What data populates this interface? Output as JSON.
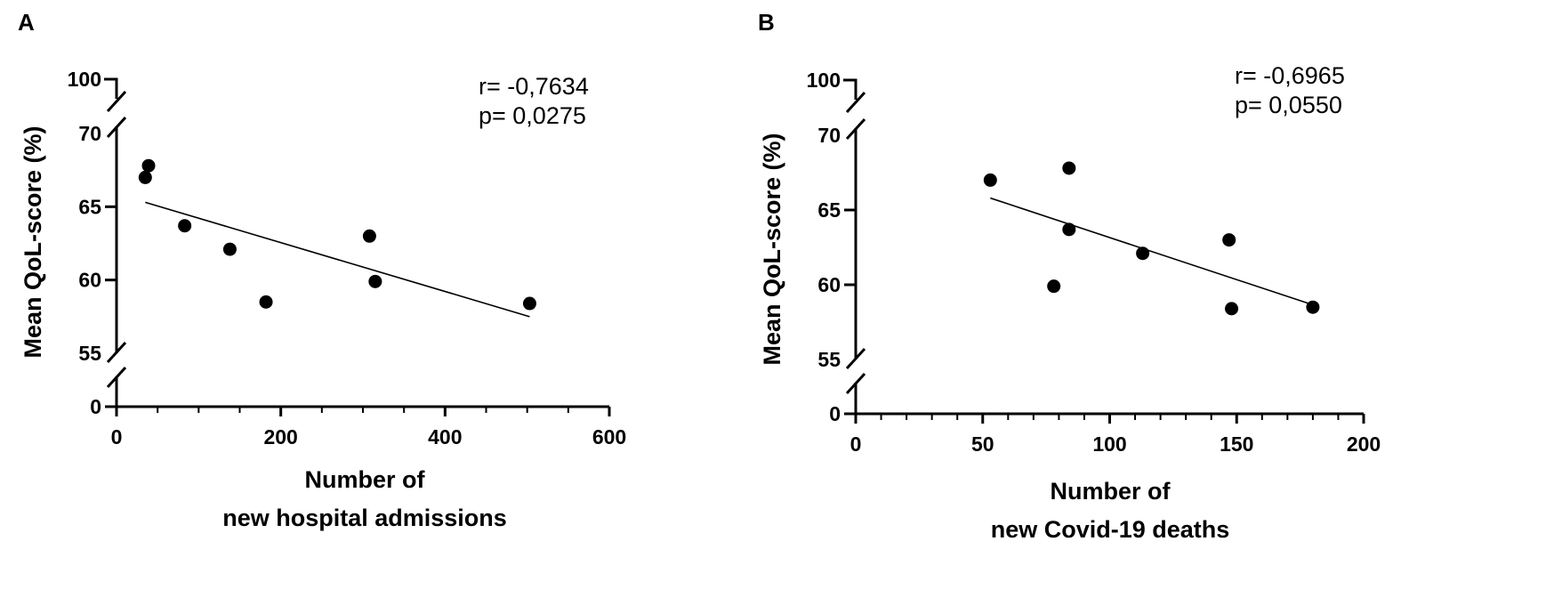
{
  "chart_data": [
    {
      "type": "scatter",
      "panel_label": "A",
      "ylabel": "Mean QoL-score (%)",
      "xlabel_lines": [
        "Number of",
        "new hospital admissions"
      ],
      "stats": {
        "r": "r= -0,7634",
        "p": "p= 0,0275"
      },
      "x_ticks": [
        "0",
        "200",
        "400",
        "600"
      ],
      "x_tick_values": [
        0,
        200,
        400,
        600
      ],
      "xlim": [
        0,
        600
      ],
      "y_ticks": [
        "100",
        "70",
        "65",
        "60",
        "55",
        "0"
      ],
      "y_axis_segments": [
        [
          100,
          100
        ],
        [
          55,
          70
        ],
        [
          0,
          0
        ]
      ],
      "points": [
        {
          "x": 35,
          "y": 67.0
        },
        {
          "x": 39,
          "y": 67.8
        },
        {
          "x": 83,
          "y": 63.7
        },
        {
          "x": 138,
          "y": 62.1
        },
        {
          "x": 182,
          "y": 58.5
        },
        {
          "x": 308,
          "y": 63.0
        },
        {
          "x": 315,
          "y": 59.9
        },
        {
          "x": 503,
          "y": 58.4
        }
      ],
      "regression_line": {
        "x1": 35,
        "y1": 65.3,
        "x2": 503,
        "y2": 57.5
      }
    },
    {
      "type": "scatter",
      "panel_label": "B",
      "ylabel": "Mean QoL-score (%)",
      "xlabel_lines": [
        "Number of",
        "new Covid-19 deaths"
      ],
      "stats": {
        "r": "r= -0,6965",
        "p": "p= 0,0550"
      },
      "x_ticks": [
        "0",
        "50",
        "100",
        "150",
        "200"
      ],
      "x_tick_values": [
        0,
        50,
        100,
        150,
        200
      ],
      "xlim": [
        0,
        200
      ],
      "y_ticks": [
        "100",
        "70",
        "65",
        "60",
        "55",
        "0"
      ],
      "y_axis_segments": [
        [
          100,
          100
        ],
        [
          55,
          70
        ],
        [
          0,
          0
        ]
      ],
      "points": [
        {
          "x": 53,
          "y": 67.0
        },
        {
          "x": 84,
          "y": 67.8
        },
        {
          "x": 84,
          "y": 63.7
        },
        {
          "x": 78,
          "y": 59.9
        },
        {
          "x": 113,
          "y": 62.1
        },
        {
          "x": 147,
          "y": 63.0
        },
        {
          "x": 148,
          "y": 58.4
        },
        {
          "x": 180,
          "y": 58.5
        }
      ],
      "regression_line": {
        "x1": 53,
        "y1": 65.8,
        "x2": 181,
        "y2": 58.6
      }
    }
  ]
}
